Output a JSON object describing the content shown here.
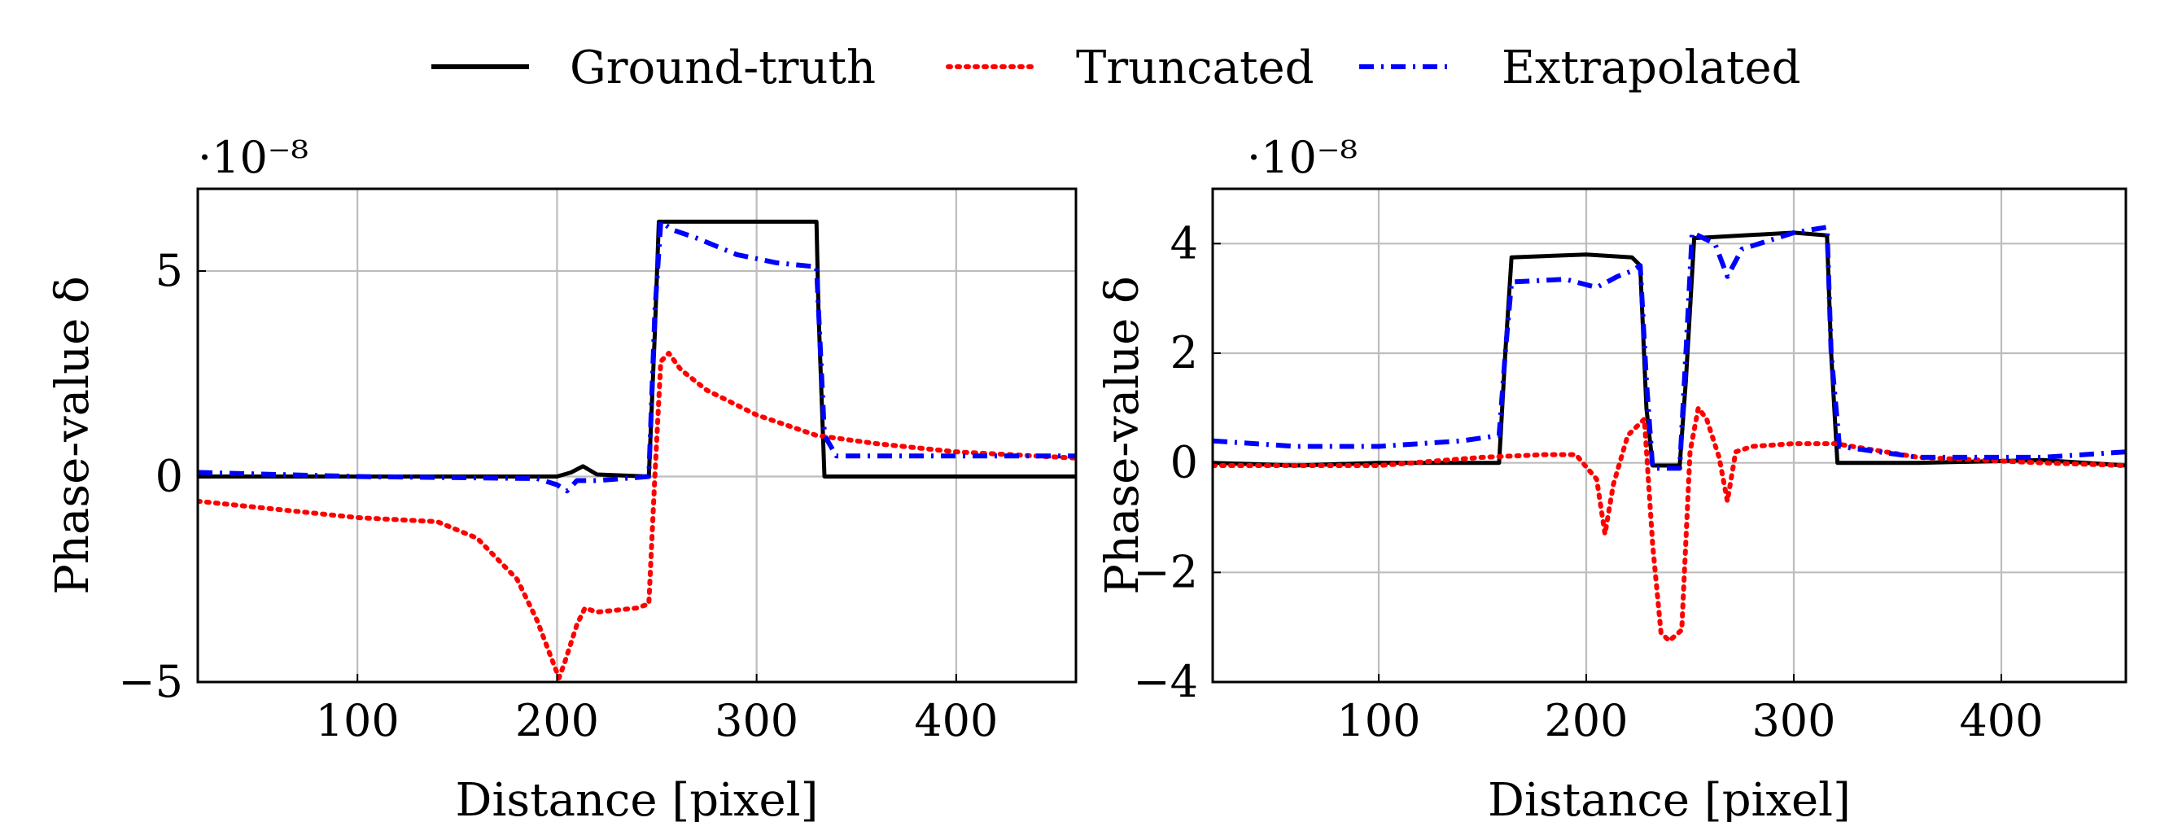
{
  "legend": [
    {
      "name": "Ground-truth",
      "color": "#000000",
      "dash": "solid"
    },
    {
      "name": "Truncated",
      "color": "#ff0000",
      "dash": "dotted"
    },
    {
      "name": "Extrapolated",
      "color": "#0000ff",
      "dash": "dashdotted"
    }
  ],
  "chart_data": [
    {
      "type": "line",
      "xlabel": "Distance [pixel]",
      "ylabel": "Phase-value δ",
      "y_scale_label": "·10⁻⁸",
      "xlim": [
        20,
        460
      ],
      "ylim": [
        -5,
        7
      ],
      "xticks": [
        100,
        200,
        300,
        400
      ],
      "xtick_labels": [
        "100",
        "200",
        "300",
        "400"
      ],
      "yticks": [
        -5,
        0,
        5
      ],
      "ytick_labels": [
        "−5",
        "0",
        "5"
      ],
      "grid": true,
      "series": [
        {
          "name": "Ground-truth",
          "color": "#000000",
          "dash": "solid",
          "x": [
            20,
            100,
            200,
            207,
            213,
            220,
            246,
            249,
            251,
            330,
            331,
            334,
            400,
            460
          ],
          "y": [
            0.0,
            0.0,
            0.0,
            0.1,
            0.25,
            0.05,
            0.0,
            3.5,
            6.2,
            6.2,
            4.0,
            0.0,
            0.0,
            0.0
          ]
        },
        {
          "name": "Truncated",
          "color": "#ff0000",
          "dash": "dotted",
          "x": [
            20,
            60,
            100,
            140,
            160,
            180,
            190,
            197,
            201,
            204,
            210,
            214,
            220,
            240,
            246,
            249,
            252,
            256,
            262,
            275,
            300,
            330,
            360,
            400,
            460
          ],
          "y": [
            -0.6,
            -0.8,
            -1.0,
            -1.1,
            -1.5,
            -2.5,
            -3.5,
            -4.4,
            -4.9,
            -4.5,
            -3.6,
            -3.2,
            -3.3,
            -3.2,
            -3.1,
            0.0,
            2.8,
            3.0,
            2.6,
            2.1,
            1.5,
            1.0,
            0.8,
            0.6,
            0.45
          ]
        },
        {
          "name": "Extrapolated",
          "color": "#0000ff",
          "dash": "dashdotted",
          "x": [
            20,
            100,
            190,
            200,
            205,
            210,
            220,
            246,
            249,
            252,
            258,
            270,
            290,
            310,
            330,
            334,
            340,
            400,
            460
          ],
          "y": [
            0.1,
            0.0,
            -0.05,
            -0.2,
            -0.35,
            -0.1,
            -0.1,
            0.0,
            4.0,
            6.2,
            6.0,
            5.8,
            5.4,
            5.2,
            5.1,
            1.0,
            0.5,
            0.5,
            0.5
          ]
        }
      ]
    },
    {
      "type": "line",
      "xlabel": "Distance [pixel]",
      "ylabel": "Phase-value δ",
      "y_scale_label": "·10⁻⁸",
      "xlim": [
        20,
        460
      ],
      "ylim": [
        -4,
        5
      ],
      "xticks": [
        100,
        200,
        300,
        400
      ],
      "xtick_labels": [
        "100",
        "200",
        "300",
        "400"
      ],
      "yticks": [
        -4,
        -2,
        0,
        2,
        4
      ],
      "ytick_labels": [
        "−4",
        "−2",
        "0",
        "2",
        "4"
      ],
      "grid": true,
      "series": [
        {
          "name": "Ground-truth",
          "color": "#000000",
          "dash": "solid",
          "x": [
            20,
            60,
            100,
            140,
            158,
            161,
            164,
            200,
            222,
            226,
            229,
            232,
            245,
            248,
            252,
            300,
            316,
            318,
            321,
            360,
            420,
            460
          ],
          "y": [
            0.0,
            -0.05,
            0.0,
            0.0,
            0.0,
            2.0,
            3.75,
            3.8,
            3.75,
            3.6,
            1.0,
            -0.05,
            -0.05,
            1.5,
            4.1,
            4.2,
            4.15,
            2.0,
            0.0,
            0.0,
            0.05,
            -0.05
          ]
        },
        {
          "name": "Truncated",
          "color": "#ff0000",
          "dash": "dotted",
          "x": [
            20,
            100,
            150,
            180,
            195,
            205,
            209,
            213,
            220,
            228,
            232,
            236,
            240,
            246,
            250,
            254,
            258,
            264,
            268,
            272,
            280,
            300,
            320,
            360,
            420,
            460
          ],
          "y": [
            -0.05,
            -0.05,
            0.1,
            0.15,
            0.15,
            -0.3,
            -1.3,
            -0.4,
            0.5,
            0.8,
            -1.5,
            -3.1,
            -3.25,
            -3.05,
            0.2,
            1.0,
            0.8,
            0.1,
            -0.7,
            0.2,
            0.3,
            0.35,
            0.35,
            0.1,
            0.0,
            -0.05
          ]
        },
        {
          "name": "Extrapolated",
          "color": "#0000ff",
          "dash": "dashdotted",
          "x": [
            20,
            60,
            100,
            140,
            158,
            161,
            164,
            190,
            205,
            215,
            222,
            226,
            229,
            232,
            245,
            248,
            251,
            262,
            268,
            275,
            300,
            316,
            318,
            322,
            360,
            420,
            460
          ],
          "y": [
            0.4,
            0.3,
            0.3,
            0.4,
            0.5,
            2.0,
            3.3,
            3.35,
            3.2,
            3.4,
            3.5,
            3.6,
            1.5,
            -0.1,
            -0.1,
            2.0,
            4.2,
            4.0,
            3.4,
            3.9,
            4.2,
            4.3,
            2.0,
            0.3,
            0.1,
            0.1,
            0.2
          ]
        }
      ]
    }
  ]
}
